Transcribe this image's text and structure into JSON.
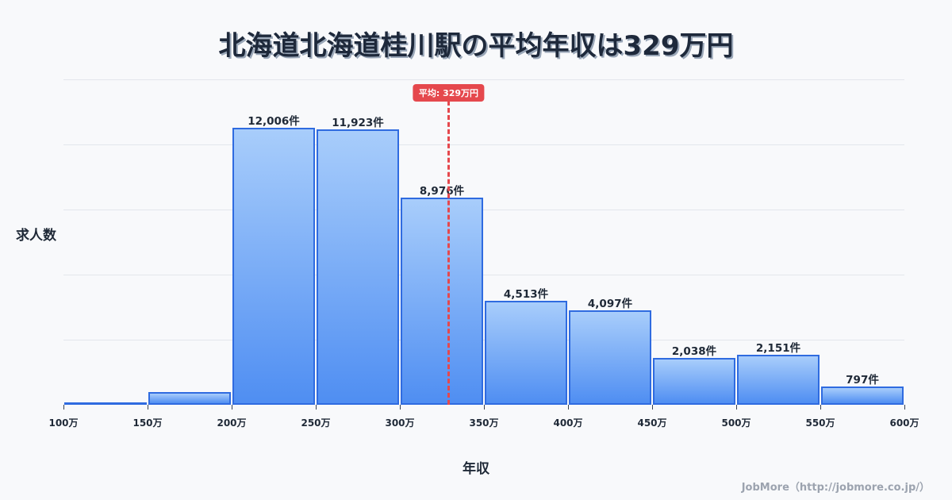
{
  "title": "北海道北海道桂川駅の平均年収は329万円",
  "footer": "JobMore（http://jobmore.co.jp/）",
  "average": {
    "label": "平均: 329万円",
    "value": 329
  },
  "chart_data": {
    "type": "bar",
    "title": "北海道北海道桂川駅の平均年収は329万円",
    "xlabel": "年収",
    "ylabel": "求人数",
    "x_ticks": [
      "100万",
      "150万",
      "200万",
      "250万",
      "300万",
      "350万",
      "400万",
      "450万",
      "500万",
      "550万",
      "600万"
    ],
    "categories": [
      "100-150万",
      "150-200万",
      "200-250万",
      "250-300万",
      "300-350万",
      "350-400万",
      "400-450万",
      "450-500万",
      "500-550万",
      "550-600万"
    ],
    "values": [
      30,
      550,
      12006,
      11923,
      8976,
      4513,
      4097,
      2038,
      2151,
      797
    ],
    "labels": [
      "",
      "",
      "12,006件",
      "11,923件",
      "8,976件",
      "4,513件",
      "4,097件",
      "2,038件",
      "2,151件",
      "797件"
    ],
    "ylim": [
      0,
      14100
    ],
    "grid": true,
    "gridlines": 5,
    "average_line": {
      "x": 329,
      "label": "平均: 329万円",
      "color": "#e5484d"
    },
    "bar_color": "#4f8ef2",
    "bar_border": "#2f6be0"
  }
}
